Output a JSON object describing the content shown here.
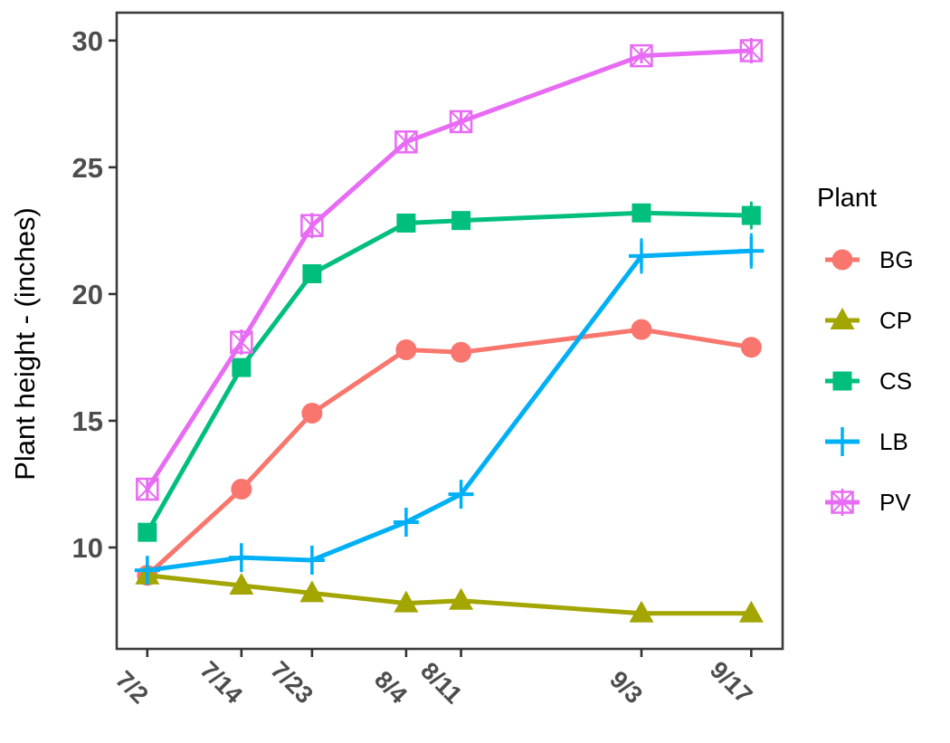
{
  "chart_data": {
    "type": "line",
    "title": "",
    "xlabel": "",
    "ylabel": "Plant height - (inches)",
    "legend_title": "Plant",
    "legend_position": "right",
    "grid": false,
    "background": "#ffffff",
    "panel_border_color": "#3b3b3b",
    "axis_text_color": "#4d4d4d",
    "x_tick_labels": [
      "7/2",
      "7/14",
      "7/23",
      "8/4",
      "8/11",
      "9/3",
      "9/17"
    ],
    "x_day_offsets": [
      0,
      12,
      21,
      33,
      40,
      63,
      77
    ],
    "x_domain_days": [
      -3.9,
      81.0
    ],
    "y_ticks": [
      10,
      15,
      20,
      25,
      30
    ],
    "y_domain": [
      6.0,
      31.1
    ],
    "series": [
      {
        "name": "BG",
        "color": "#F8766D",
        "marker": "circle",
        "values": [
          8.9,
          12.3,
          15.3,
          17.8,
          17.7,
          18.6,
          17.9
        ],
        "se": [
          0.2,
          0.2,
          0.2,
          0.2,
          0.2,
          0.35,
          0.2
        ]
      },
      {
        "name": "CP",
        "color": "#A3A500",
        "marker": "triangle",
        "values": [
          8.9,
          8.5,
          8.2,
          7.8,
          7.9,
          7.4,
          7.4
        ],
        "se": [
          0.2,
          0.3,
          0.3,
          0.2,
          0.2,
          0.2,
          0.2
        ]
      },
      {
        "name": "CS",
        "color": "#00BF7D",
        "marker": "square",
        "values": [
          10.6,
          17.1,
          20.8,
          22.8,
          22.9,
          23.2,
          23.1
        ],
        "se": [
          0.3,
          0.3,
          0.3,
          0.3,
          0.3,
          0.3,
          0.55
        ]
      },
      {
        "name": "LB",
        "color": "#00B0F6",
        "marker": "plus",
        "values": [
          9.1,
          9.6,
          9.5,
          11.0,
          12.1,
          21.5,
          21.7
        ],
        "se": [
          0.3,
          0.5,
          0.45,
          0.4,
          0.55,
          0.7,
          0.7
        ]
      },
      {
        "name": "PV",
        "color": "#E76BF3",
        "marker": "square-x",
        "values": [
          12.3,
          18.1,
          22.7,
          26.0,
          26.8,
          29.4,
          29.6
        ],
        "se": [
          0.4,
          0.5,
          0.5,
          0.4,
          0.4,
          0.3,
          0.5
        ]
      }
    ]
  }
}
